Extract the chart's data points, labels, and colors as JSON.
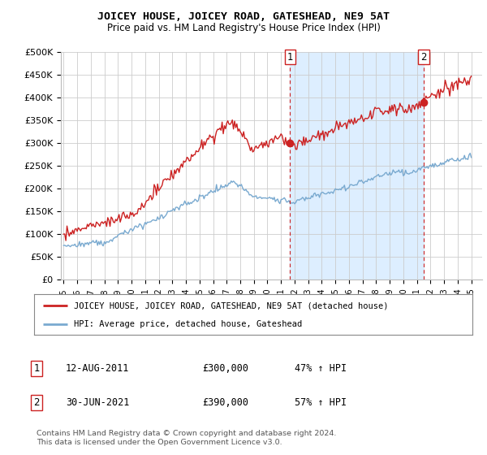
{
  "title": "JOICEY HOUSE, JOICEY ROAD, GATESHEAD, NE9 5AT",
  "subtitle": "Price paid vs. HM Land Registry's House Price Index (HPI)",
  "ylim": [
    0,
    500000
  ],
  "yticks": [
    0,
    50000,
    100000,
    150000,
    200000,
    250000,
    300000,
    350000,
    400000,
    450000,
    500000
  ],
  "ytick_labels": [
    "£0",
    "£50K",
    "£100K",
    "£150K",
    "£200K",
    "£250K",
    "£300K",
    "£350K",
    "£400K",
    "£450K",
    "£500K"
  ],
  "red_color": "#cc2222",
  "blue_color": "#7aaad0",
  "vline_color": "#cc2222",
  "shade_color": "#ddeeff",
  "sale1_x": 2011.667,
  "sale2_x": 2021.5,
  "sale1_y": 300000,
  "sale2_y": 390000,
  "legend_red": "JOICEY HOUSE, JOICEY ROAD, GATESHEAD, NE9 5AT (detached house)",
  "legend_blue": "HPI: Average price, detached house, Gateshead",
  "ann1_label": "1",
  "ann1_date": "12-AUG-2011",
  "ann1_price": "£300,000",
  "ann1_pct": "47% ↑ HPI",
  "ann2_label": "2",
  "ann2_date": "30-JUN-2021",
  "ann2_price": "£390,000",
  "ann2_pct": "57% ↑ HPI",
  "footer": "Contains HM Land Registry data © Crown copyright and database right 2024.\nThis data is licensed under the Open Government Licence v3.0.",
  "background_color": "#ffffff",
  "grid_color": "#cccccc",
  "xlim_left": 1994.8,
  "xlim_right": 2025.8
}
